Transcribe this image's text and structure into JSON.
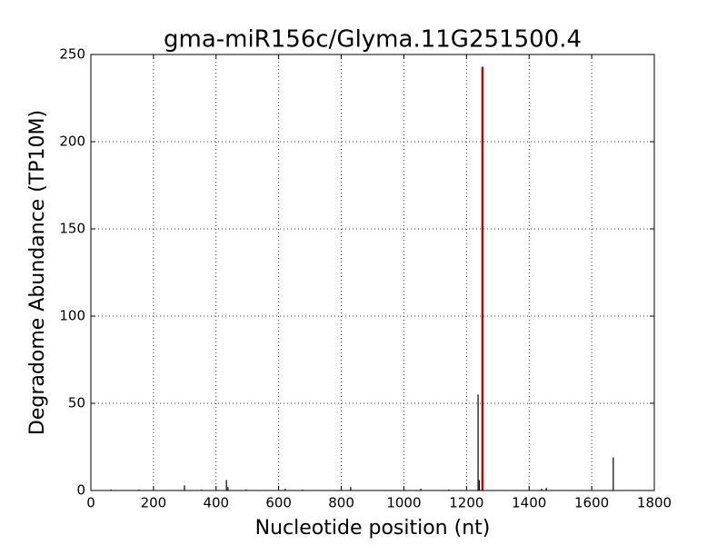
{
  "chart_data": {
    "type": "stem",
    "title": "gma-miR156c/Glyma.11G251500.4",
    "xlabel": "Nucleotide position (nt)",
    "ylabel": "Degradome Abundance (TP10M)",
    "xlim": [
      0,
      1800
    ],
    "ylim": [
      0,
      250
    ],
    "xticks": [
      0,
      200,
      400,
      600,
      800,
      1000,
      1200,
      1400,
      1600,
      1800
    ],
    "yticks": [
      0,
      50,
      100,
      150,
      200,
      250
    ],
    "grid": true,
    "series": [
      {
        "color": "#000000",
        "x": [
          64,
          154,
          299,
          354,
          433,
          438,
          496,
          621,
          676,
          830,
          1054,
          1144,
          1237,
          1241,
          1440,
          1455,
          1669
        ],
        "values": [
          0.5,
          0.5,
          3,
          0.5,
          6,
          2,
          0.5,
          1,
          0.5,
          2,
          1,
          0.5,
          55,
          6,
          1,
          1.5,
          19
        ]
      },
      {
        "color": "#cc0000",
        "x": [
          1251
        ],
        "values": [
          243
        ]
      }
    ]
  }
}
